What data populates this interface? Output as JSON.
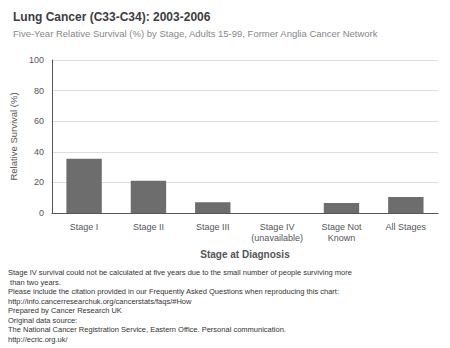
{
  "chart_data": {
    "type": "bar",
    "title": "Lung Cancer (C33-C34): 2003-2006",
    "subtitle": "Five-Year Relative Survival (%) by Stage, Adults 15-99, Former Anglia Cancer Network",
    "categories": [
      "Stage I",
      "Stage II",
      "Stage III",
      "Stage IV\n(unavailable)",
      "Stage Not\nKnown",
      "All Stages"
    ],
    "values": [
      35.5,
      21.0,
      7.0,
      0,
      6.5,
      10.5
    ],
    "color": "#6d6d6d",
    "xlabel": "Stage at Diagnosis",
    "ylabel": "Relative Survival (%)",
    "ylim": [
      0,
      100
    ],
    "yticks": [
      0,
      20,
      40,
      60,
      80,
      100
    ],
    "grid": true,
    "annotations": [
      "Stage IV survival could not be calculated at five years due to the small number of people surviving more than two years.",
      "Please include the citation provided in our Frequently Asked Questions when reproducing this chart: http://info.cancerresearchuk.org/cancerstats/faqs/#How",
      "Prepared by Cancer Research UK",
      "Original data source:",
      "The National Cancer Registration Service, Eastern Office. Personal communication.",
      "http://ecric.org.uk/"
    ]
  }
}
